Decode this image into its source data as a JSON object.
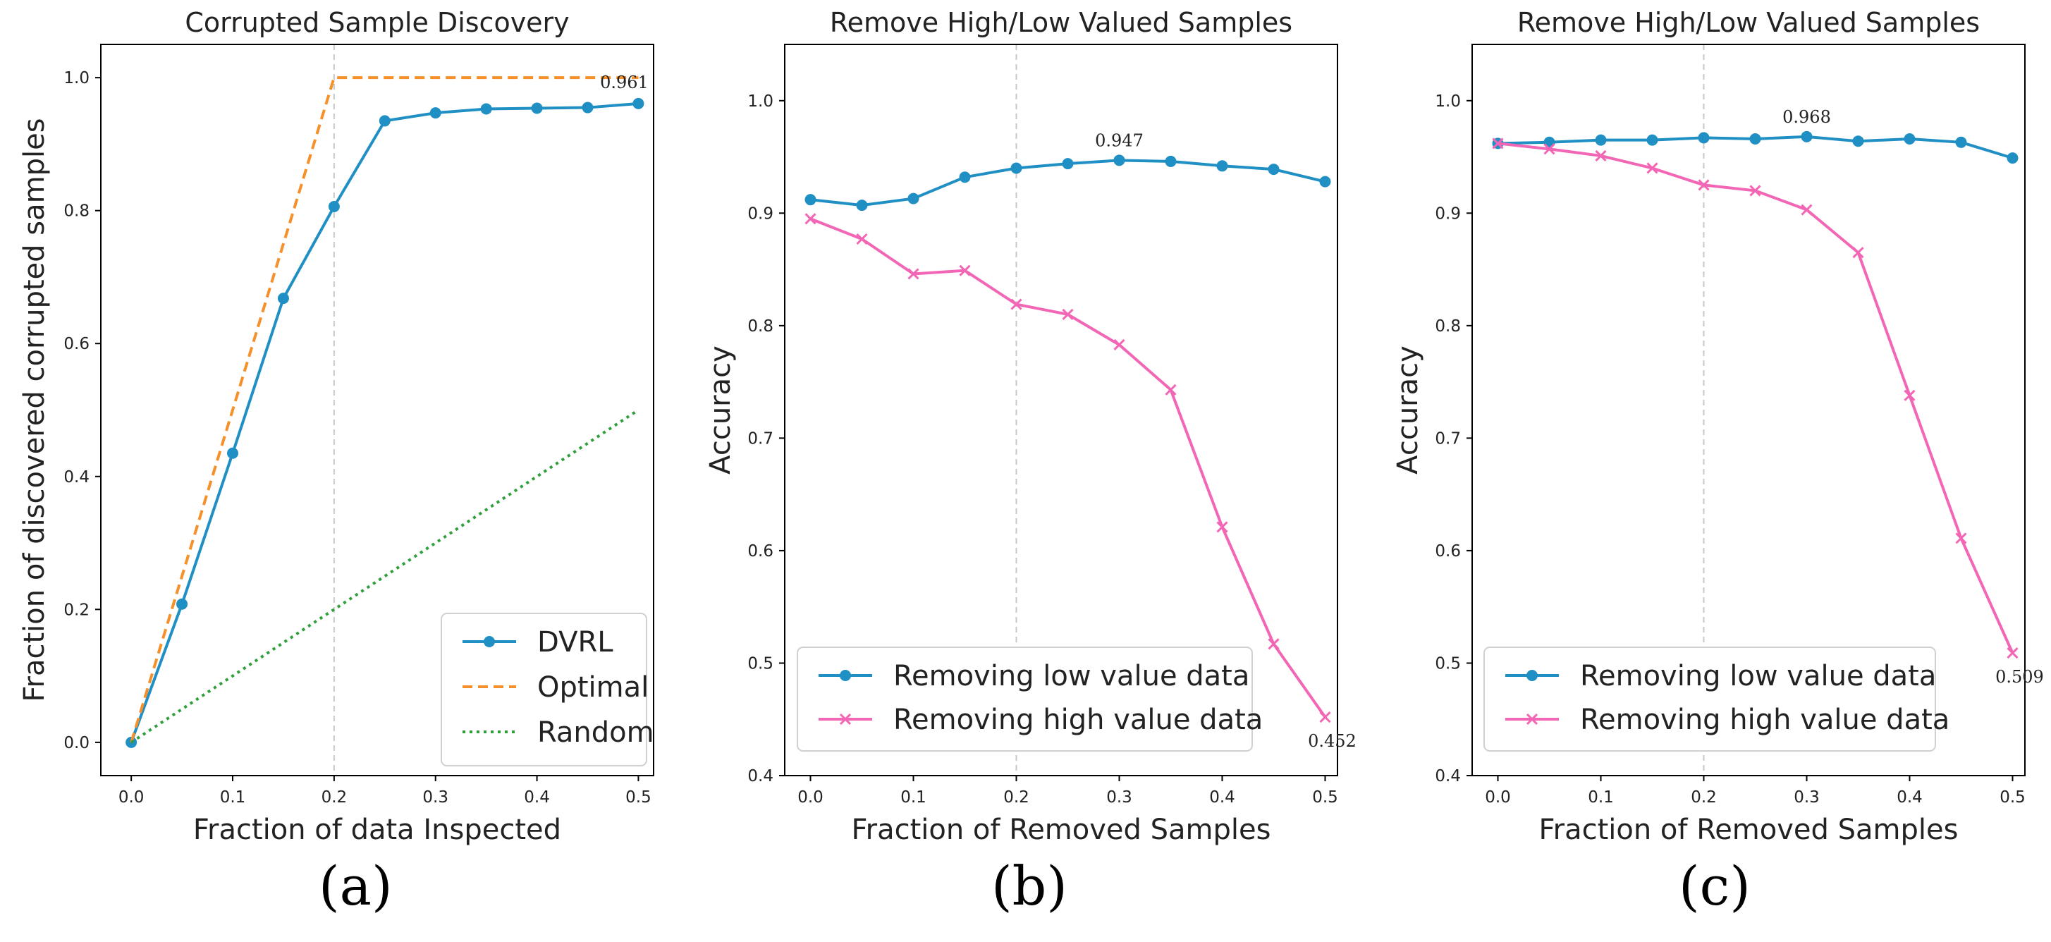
{
  "chart_data": [
    {
      "type": "line",
      "panel_label": "(a)",
      "title": "Corrupted Sample Discovery",
      "xlabel": "Fraction of data Inspected",
      "ylabel": "Fraction of discovered corrupted samples",
      "xlim": [
        -0.03,
        0.515
      ],
      "ylim": [
        -0.05,
        1.05
      ],
      "xticks": [
        "0.0",
        "0.1",
        "0.2",
        "0.3",
        "0.4",
        "0.5"
      ],
      "yticks": [
        "0.0",
        "0.2",
        "0.4",
        "0.6",
        "0.8",
        "1.0"
      ],
      "vline_x": 0.2,
      "legend": "bottom-right",
      "series": [
        {
          "name": "DVRL",
          "color": "#1f8fc4",
          "style": "solid",
          "marker": "circle",
          "x": [
            0,
            0.05,
            0.1,
            0.15,
            0.2,
            0.25,
            0.3,
            0.35,
            0.4,
            0.45,
            0.5
          ],
          "y": [
            0,
            0.208,
            0.435,
            0.668,
            0.806,
            0.935,
            0.947,
            0.953,
            0.954,
            0.955,
            0.961
          ]
        },
        {
          "name": "Optimal",
          "color": "#f5902a",
          "style": "dashed",
          "marker": "none",
          "x": [
            0,
            0.2,
            0.5
          ],
          "y": [
            0,
            1.0,
            1.0
          ]
        },
        {
          "name": "Random",
          "color": "#2f9f3c",
          "style": "dotted",
          "marker": "none",
          "x": [
            0,
            0.5
          ],
          "y": [
            0,
            0.5
          ]
        }
      ],
      "annotations": [
        {
          "text": "0.961",
          "x": 0.5,
          "y": 0.961
        }
      ]
    },
    {
      "type": "line",
      "panel_label": "(b)",
      "title": "Remove High/Low Valued Samples",
      "xlabel": "Fraction of Removed Samples",
      "ylabel": "Accuracy",
      "xlim": [
        -0.025,
        0.512
      ],
      "ylim": [
        0.4,
        1.05
      ],
      "xticks": [
        "0.0",
        "0.1",
        "0.2",
        "0.3",
        "0.4",
        "0.5"
      ],
      "yticks": [
        "0.4",
        "0.5",
        "0.6",
        "0.7",
        "0.8",
        "0.9",
        "1.0"
      ],
      "vline_x": 0.2,
      "legend": "bottom-left",
      "series": [
        {
          "name": "Removing low value data",
          "color": "#1f8fc4",
          "style": "solid",
          "marker": "circle",
          "x": [
            0,
            0.05,
            0.1,
            0.15,
            0.2,
            0.25,
            0.3,
            0.35,
            0.4,
            0.45,
            0.5
          ],
          "y": [
            0.912,
            0.907,
            0.913,
            0.932,
            0.94,
            0.944,
            0.947,
            0.946,
            0.942,
            0.939,
            0.928
          ]
        },
        {
          "name": "Removing high value data",
          "color": "#f266b5",
          "style": "solid",
          "marker": "x",
          "x": [
            0,
            0.05,
            0.1,
            0.15,
            0.2,
            0.25,
            0.3,
            0.35,
            0.4,
            0.45,
            0.5
          ],
          "y": [
            0.895,
            0.877,
            0.846,
            0.849,
            0.819,
            0.81,
            0.783,
            0.743,
            0.621,
            0.517,
            0.452
          ]
        }
      ],
      "annotations": [
        {
          "text": "0.947",
          "x": 0.3,
          "y": 0.947,
          "pos": "above"
        },
        {
          "text": "0.452",
          "x": 0.5,
          "y": 0.452,
          "pos": "below"
        }
      ]
    },
    {
      "type": "line",
      "panel_label": "(c)",
      "title": "Remove High/Low Valued Samples",
      "xlabel": "Fraction of Removed Samples",
      "ylabel": "Accuracy",
      "xlim": [
        -0.025,
        0.512
      ],
      "ylim": [
        0.4,
        1.05
      ],
      "xticks": [
        "0.0",
        "0.1",
        "0.2",
        "0.3",
        "0.4",
        "0.5"
      ],
      "yticks": [
        "0.4",
        "0.5",
        "0.6",
        "0.7",
        "0.8",
        "0.9",
        "1.0"
      ],
      "vline_x": 0.2,
      "legend": "bottom-left",
      "series": [
        {
          "name": "Removing low value data",
          "color": "#1f8fc4",
          "style": "solid",
          "marker": "circle",
          "x": [
            0,
            0.05,
            0.1,
            0.15,
            0.2,
            0.25,
            0.3,
            0.35,
            0.4,
            0.45,
            0.5
          ],
          "y": [
            0.962,
            0.963,
            0.965,
            0.965,
            0.967,
            0.966,
            0.968,
            0.964,
            0.966,
            0.963,
            0.949
          ]
        },
        {
          "name": "Removing high value data",
          "color": "#f266b5",
          "style": "solid",
          "marker": "x",
          "x": [
            0,
            0.05,
            0.1,
            0.15,
            0.2,
            0.25,
            0.3,
            0.35,
            0.4,
            0.45,
            0.5
          ],
          "y": [
            0.962,
            0.957,
            0.951,
            0.94,
            0.925,
            0.92,
            0.903,
            0.865,
            0.738,
            0.611,
            0.509
          ]
        }
      ],
      "annotations": [
        {
          "text": "0.968",
          "x": 0.3,
          "y": 0.968,
          "pos": "above"
        },
        {
          "text": "0.509",
          "x": 0.5,
          "y": 0.509,
          "pos": "below"
        }
      ]
    }
  ]
}
